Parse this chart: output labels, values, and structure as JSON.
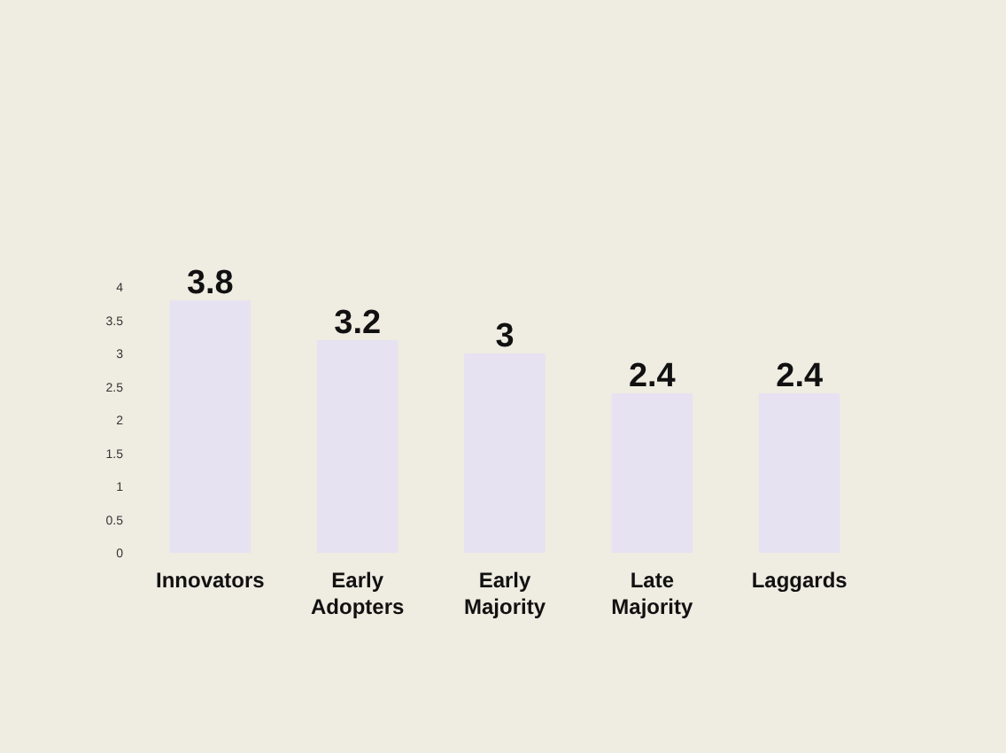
{
  "chart_data": {
    "type": "bar",
    "categories": [
      "Innovators",
      "Early Adopters",
      "Early Majority",
      "Late Majority",
      "Laggards"
    ],
    "values": [
      3.8,
      3.2,
      3,
      2.4,
      2.4
    ],
    "color": "#e6e2f2",
    "ylim": [
      0,
      4
    ],
    "yticks": [
      0,
      0.5,
      1,
      1.5,
      2,
      2.5,
      3,
      3.5,
      4
    ],
    "data_labels": true,
    "grid": false
  }
}
